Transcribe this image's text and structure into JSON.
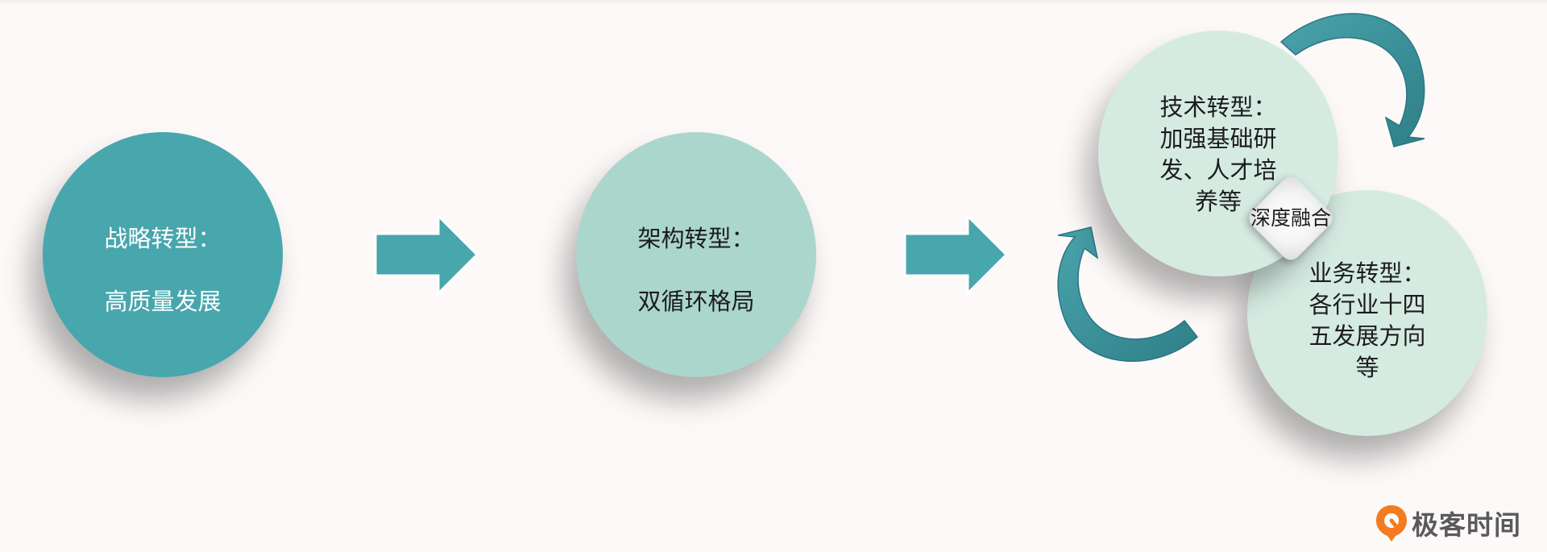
{
  "stages": [
    {
      "title": "战略转型：",
      "body": "高质量发展"
    },
    {
      "title": "架构转型：",
      "body": "双循环格局"
    }
  ],
  "branches": [
    {
      "text": "技术转型：\n加强基础研\n发、人才培\n养等"
    },
    {
      "text": "业务转型：\n各行业十四\n五发展方向\n等"
    }
  ],
  "merge_label": "深度融合",
  "logo": {
    "text": "极客时间",
    "icon": "geektime-logo-icon"
  },
  "colors": {
    "teal_dark": "#48a6ad",
    "teal_mid": "#abd6cc",
    "teal_light": "#d5ebe2",
    "curve_arrow": "#3f939c",
    "logo_orange": "#f47b20"
  }
}
